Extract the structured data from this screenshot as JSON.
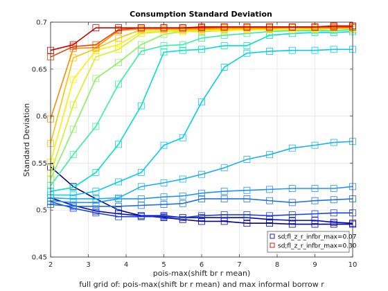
{
  "chart_data": {
    "type": "line",
    "title": "Consumption Standard Deviation",
    "xlabel": "pois-max(shift br r mean)",
    "xlabel2": "full grid of: pois-max(shift br r mean) and max informal borrow r",
    "ylabel": "Standard Deviation",
    "xlim": [
      2,
      10
    ],
    "ylim": [
      0.45,
      0.7
    ],
    "xticks": [
      "2",
      "3",
      "4",
      "5",
      "6",
      "7",
      "8",
      "9",
      "10"
    ],
    "yticks": [
      "0.45",
      "0.5",
      "0.55",
      "0.6",
      "0.65",
      "0.7"
    ],
    "grid": true,
    "marker": "square",
    "legend": {
      "placement": "bottom-right",
      "entries": [
        {
          "label": "sd;fl_z_r_infbr_max=0.07",
          "color": "#0000cc"
        },
        {
          "label": "sd;fl_z_r_infbr_max=0.30",
          "color": "#cc0000"
        }
      ]
    },
    "x": [
      2,
      2.6,
      3.2,
      3.8,
      4.4,
      5.0,
      5.5,
      6.0,
      6.6,
      7.2,
      7.8,
      8.4,
      9.0,
      9.5,
      10
    ],
    "series": [
      {
        "color": "#00008b",
        "values": [
          0.546,
          0.525,
          0.512,
          0.5,
          0.494,
          0.492,
          0.49,
          0.488,
          0.488,
          0.486,
          0.486,
          0.485,
          0.485,
          0.485,
          0.485
        ]
      },
      {
        "color": "#0000cd",
        "values": [
          0.513,
          0.505,
          0.499,
          0.496,
          0.494,
          0.494,
          0.492,
          0.492,
          0.492,
          0.492,
          0.49,
          0.489,
          0.489,
          0.487,
          0.486
        ]
      },
      {
        "color": "#1a3fe0",
        "values": [
          0.509,
          0.502,
          0.497,
          0.493,
          0.493,
          0.493,
          0.492,
          0.494,
          0.495,
          0.495,
          0.494,
          0.495,
          0.496,
          0.497,
          0.497
        ]
      },
      {
        "color": "#1f6fe6",
        "values": [
          0.506,
          0.504,
          0.504,
          0.504,
          0.505,
          0.506,
          0.507,
          0.512,
          0.512,
          0.512,
          0.51,
          0.508,
          0.51,
          0.511,
          0.512
        ]
      },
      {
        "color": "#1e90ff",
        "values": [
          0.51,
          0.508,
          0.508,
          0.512,
          0.512,
          0.514,
          0.515,
          0.518,
          0.52,
          0.521,
          0.522,
          0.523,
          0.523,
          0.523,
          0.525
        ]
      },
      {
        "color": "#1ab0f0",
        "values": [
          0.513,
          0.512,
          0.512,
          0.513,
          0.525,
          0.529,
          0.533,
          0.538,
          0.545,
          0.554,
          0.559,
          0.566,
          0.569,
          0.572,
          0.573
        ]
      },
      {
        "color": "#00ccee",
        "values": [
          0.516,
          0.516,
          0.52,
          0.53,
          0.54,
          0.569,
          0.577,
          0.615,
          0.652,
          0.667,
          0.669,
          0.67,
          0.67,
          0.671,
          0.671
        ]
      },
      {
        "color": "#00e0cc",
        "values": [
          0.52,
          0.524,
          0.54,
          0.57,
          0.611,
          0.668,
          0.67,
          0.671,
          0.675,
          0.675,
          0.686,
          0.688,
          0.689,
          0.689,
          0.69
        ]
      },
      {
        "color": "#33f0a0",
        "values": [
          0.526,
          0.559,
          0.589,
          0.634,
          0.669,
          0.675,
          0.676,
          0.683,
          0.686,
          0.688,
          0.69,
          0.691,
          0.691,
          0.691,
          0.692
        ]
      },
      {
        "color": "#88f060",
        "values": [
          0.533,
          0.586,
          0.64,
          0.657,
          0.676,
          0.687,
          0.69,
          0.69,
          0.691,
          0.692,
          0.692,
          0.692,
          0.693,
          0.693,
          0.693
        ]
      },
      {
        "color": "#d4f020",
        "values": [
          0.539,
          0.612,
          0.663,
          0.671,
          0.688,
          0.69,
          0.691,
          0.691,
          0.692,
          0.692,
          0.692,
          0.692,
          0.692,
          0.693,
          0.693
        ]
      },
      {
        "color": "#ffee00",
        "values": [
          0.551,
          0.639,
          0.67,
          0.676,
          0.69,
          0.69,
          0.69,
          0.691,
          0.691,
          0.692,
          0.692,
          0.692,
          0.693,
          0.693,
          0.693
        ]
      },
      {
        "color": "#ffc000",
        "values": [
          0.571,
          0.662,
          0.672,
          0.683,
          0.692,
          0.692,
          0.692,
          0.692,
          0.693,
          0.693,
          0.693,
          0.694,
          0.694,
          0.694,
          0.694
        ]
      },
      {
        "color": "#ff8800",
        "values": [
          0.597,
          0.672,
          0.673,
          0.691,
          0.693,
          0.693,
          0.693,
          0.693,
          0.694,
          0.694,
          0.694,
          0.694,
          0.694,
          0.694,
          0.694
        ]
      },
      {
        "color": "#ee4400",
        "values": [
          0.663,
          0.674,
          0.676,
          0.692,
          0.694,
          0.694,
          0.694,
          0.694,
          0.695,
          0.695,
          0.695,
          0.695,
          0.695,
          0.695,
          0.695
        ]
      },
      {
        "color": "#cc0000",
        "values": [
          0.67,
          0.676,
          0.694,
          0.694,
          0.694,
          0.694,
          0.694,
          0.695,
          0.695,
          0.695,
          0.695,
          0.695,
          0.695,
          0.696,
          0.696
        ]
      }
    ]
  }
}
